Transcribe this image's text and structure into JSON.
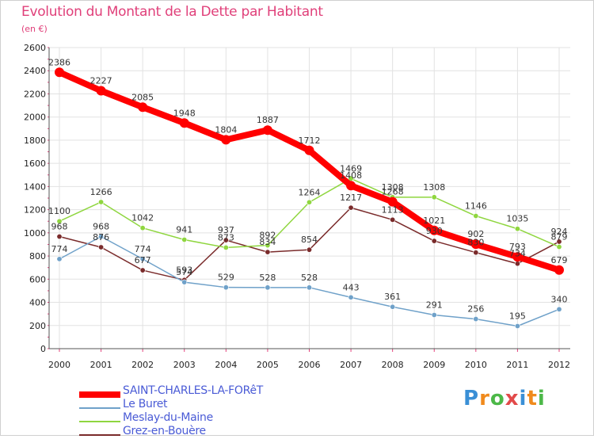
{
  "title": "Evolution du Montant de la Dette par Habitant",
  "subtitle": "(en €)",
  "logo": "Proxiti",
  "chart_data": {
    "type": "line",
    "title": "Evolution du Montant de la Dette par Habitant",
    "ylabel": "(en €)",
    "xlabel": "",
    "ylim": [
      0,
      2600
    ],
    "yticks": [
      0,
      200,
      400,
      600,
      800,
      1000,
      1200,
      1400,
      1600,
      1800,
      2000,
      2200,
      2400,
      2600
    ],
    "grid": true,
    "legend_position": "bottom-left",
    "x": [
      "2000",
      "2001",
      "2002",
      "2003",
      "2004",
      "2005",
      "2006",
      "2007",
      "2008",
      "2009",
      "2010",
      "2011",
      "2012"
    ],
    "series": [
      {
        "name": "SAINT-CHARLES-LA-FORêT",
        "color": "#ff0000",
        "values": [
          2386,
          2227,
          2085,
          1948,
          1804,
          1887,
          1712,
          1408,
          1268,
          1021,
          902,
          793,
          679
        ]
      },
      {
        "name": "Le Buret",
        "color": "#6fa1c9",
        "values": [
          774,
          968,
          774,
          574,
          529,
          528,
          528,
          443,
          361,
          291,
          256,
          195,
          340
        ]
      },
      {
        "name": "Meslay-du-Maine",
        "color": "#8fd63f",
        "values": [
          1100,
          1266,
          1042,
          941,
          873,
          892,
          1264,
          1469,
          1308,
          1308,
          1146,
          1035,
          879
        ]
      },
      {
        "name": "Grez-en-Bouère",
        "color": "#7a2b2b",
        "values": [
          968,
          876,
          677,
          593,
          937,
          834,
          854,
          1217,
          1113,
          930,
          830,
          734,
          924
        ]
      }
    ]
  }
}
